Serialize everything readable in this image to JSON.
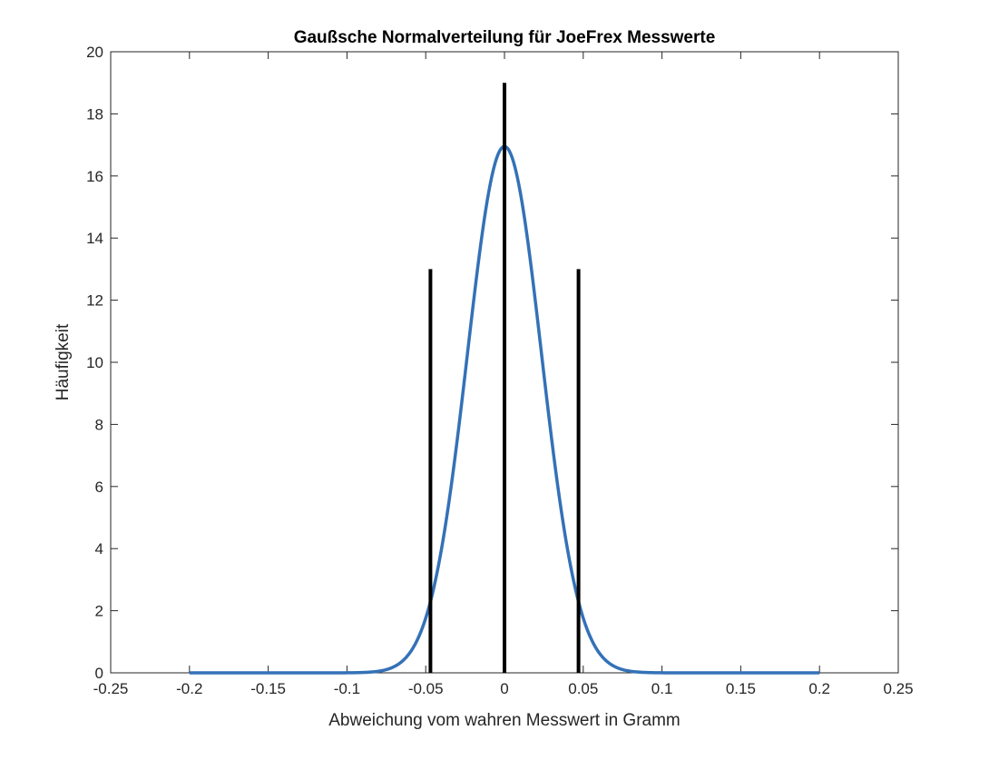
{
  "chart_data": {
    "type": "line",
    "title": "Gaußsche Normalverteilung für JoeFrex Messwerte",
    "xlabel": "Abweichung vom wahren Messwert in Gramm",
    "ylabel": "Häufigkeit",
    "xlim": [
      -0.25,
      0.25
    ],
    "ylim": [
      0,
      20
    ],
    "xticks": [
      -0.25,
      -0.2,
      -0.15,
      -0.1,
      -0.05,
      0,
      0.05,
      0.1,
      0.15,
      0.2,
      0.25
    ],
    "xtick_labels": [
      "-0.25",
      "-0.2",
      "-0.15",
      "-0.1",
      "-0.05",
      "0",
      "0.05",
      "0.1",
      "0.15",
      "0.2",
      "0.25"
    ],
    "yticks": [
      0,
      2,
      4,
      6,
      8,
      10,
      12,
      14,
      16,
      18,
      20
    ],
    "ytick_labels": [
      "0",
      "2",
      "4",
      "6",
      "8",
      "10",
      "12",
      "14",
      "16",
      "18",
      "20"
    ],
    "grid": false,
    "series": [
      {
        "kind": "stem",
        "color": "#000000",
        "x": [
          -0.047,
          0,
          0.047
        ],
        "values": [
          13,
          19,
          13
        ]
      },
      {
        "kind": "curve",
        "color": "#3471b7",
        "function": "gaussian",
        "mean": 0,
        "sigma": 0.0235,
        "peak": 16.95,
        "x_range": [
          -0.2,
          0.2
        ]
      }
    ]
  }
}
